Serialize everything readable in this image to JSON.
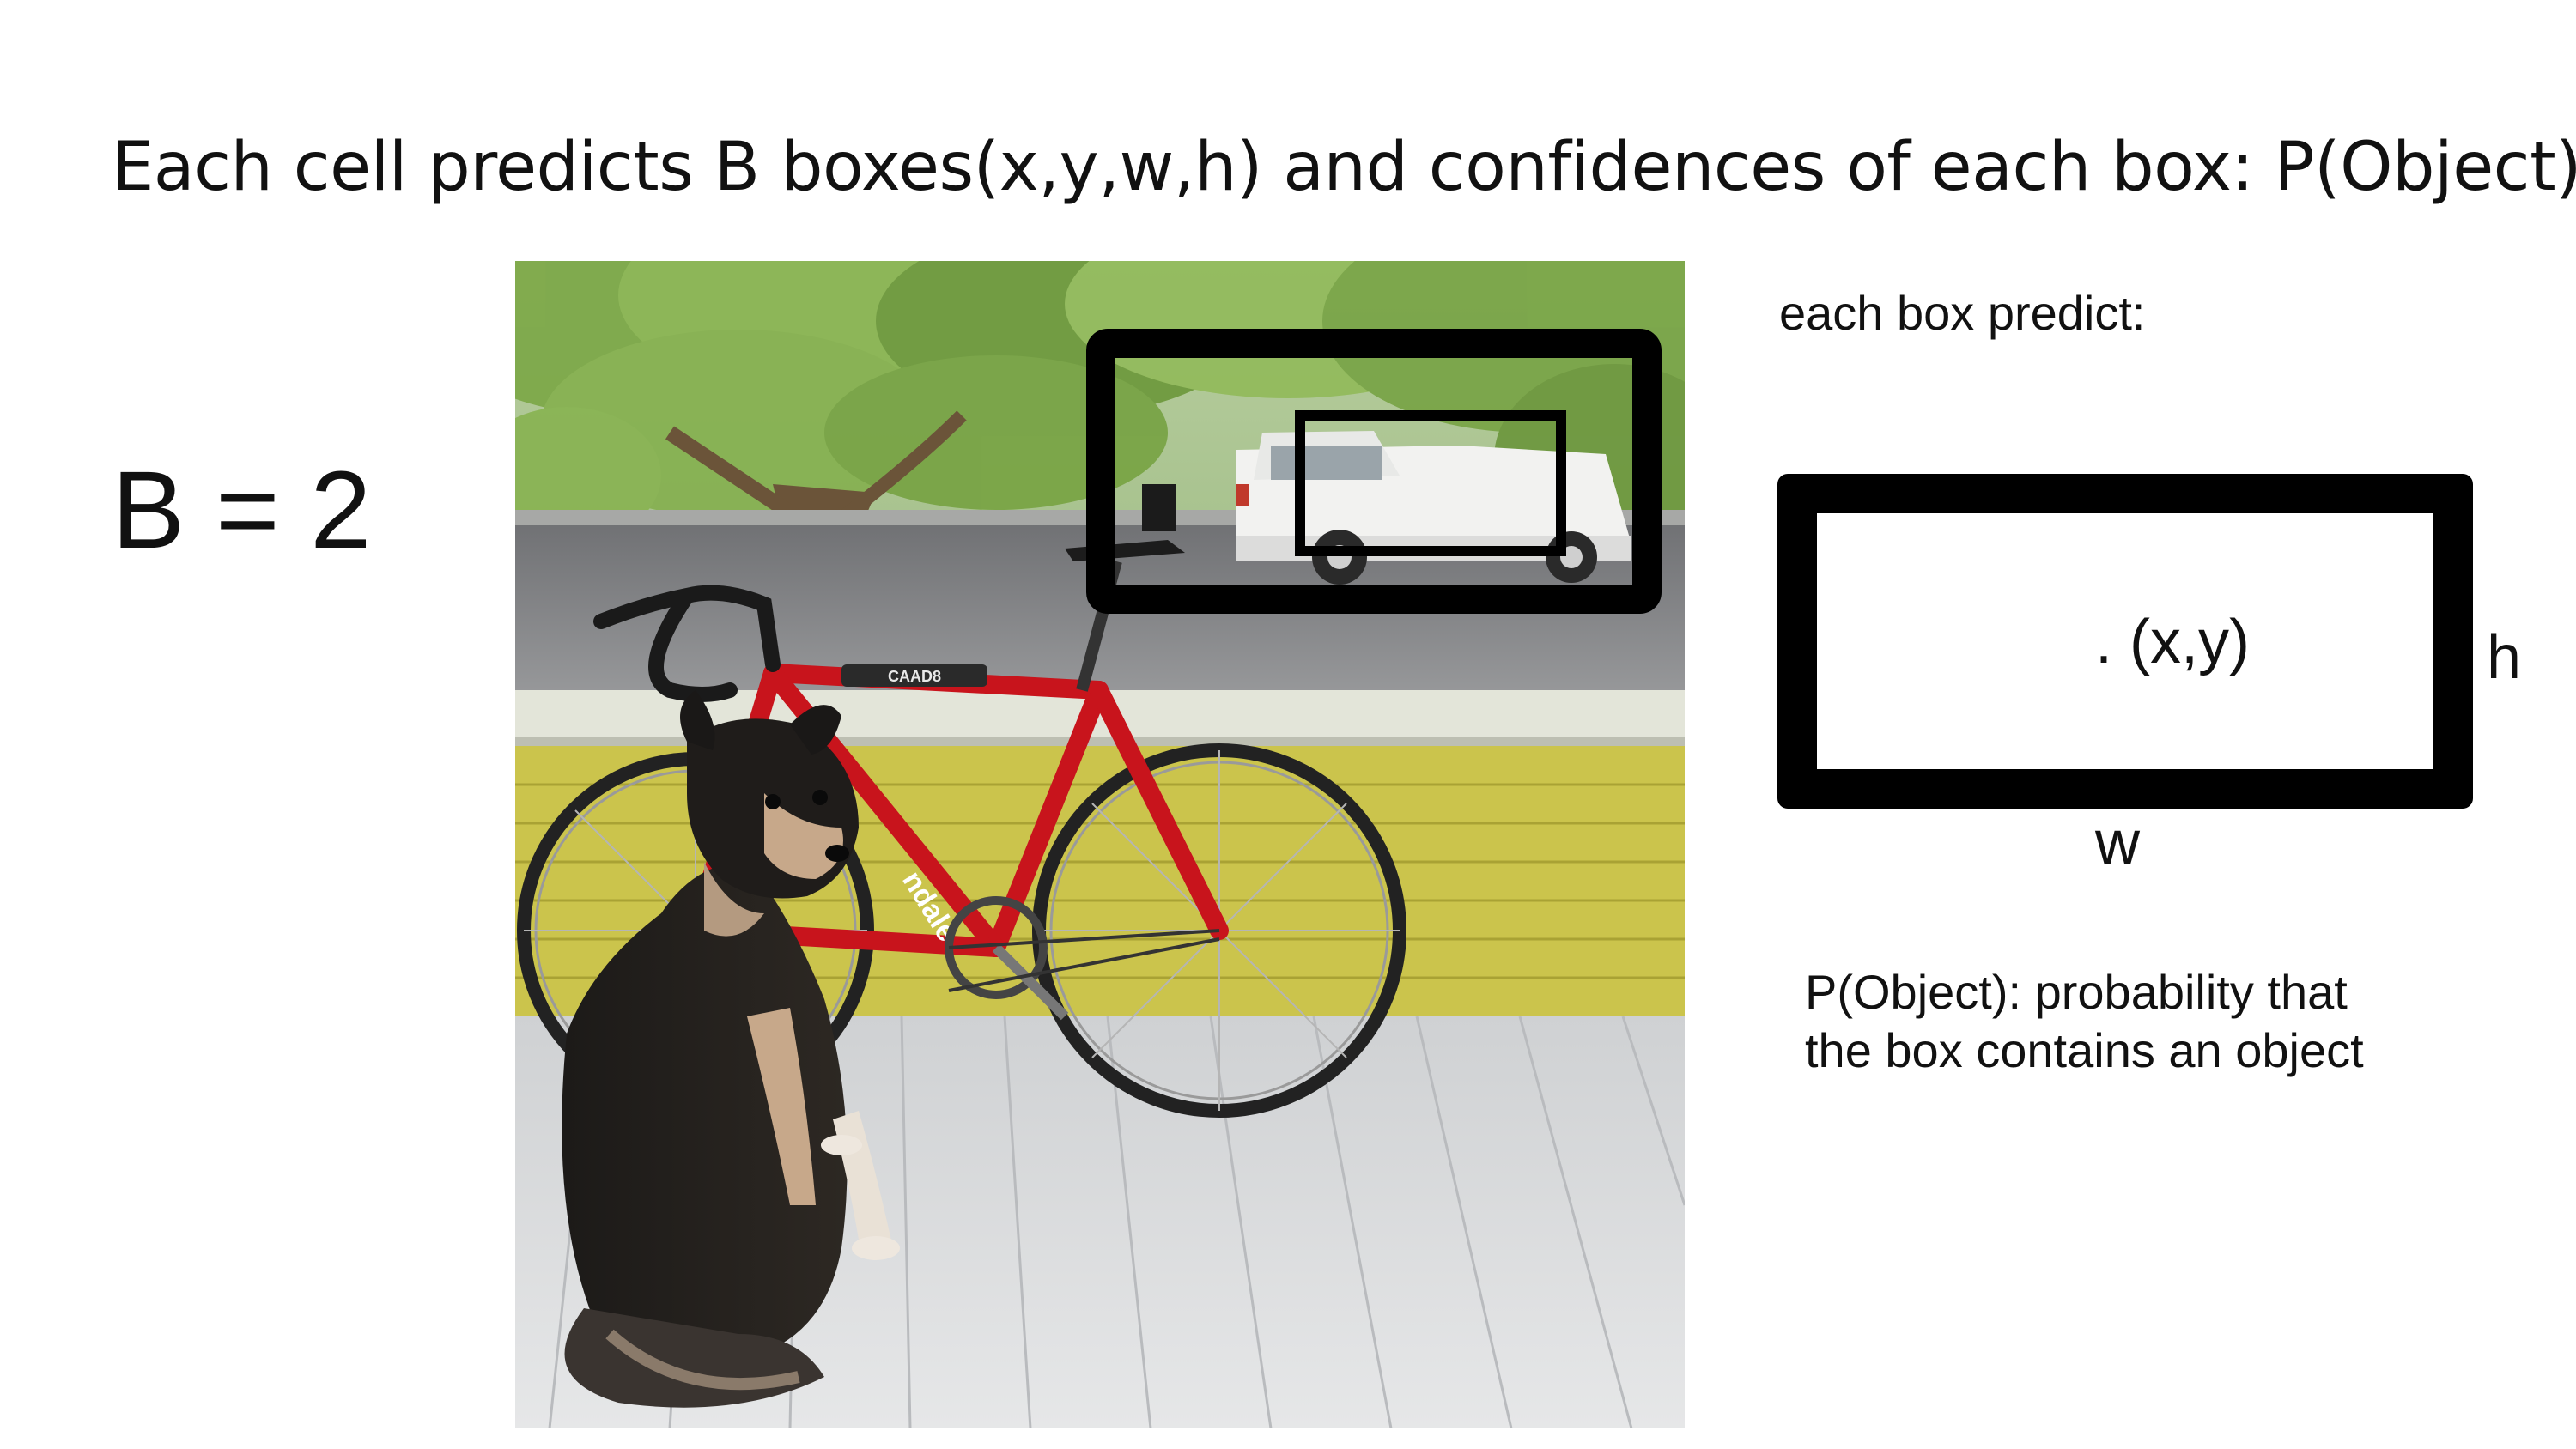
{
  "slide": {
    "title": "Each cell predicts B boxes(x,y,w,h) and confidences of each box: P(Object)",
    "b_value_label": "B = 2"
  },
  "photo": {
    "subject": "dog sitting next to a red road bicycle on a porch, white pickup truck in background",
    "bike_brand_text": "CAAD8",
    "bike_model_text": "ndale",
    "colors": {
      "bike_frame": "#c8141c",
      "siding": "#c9c24a",
      "porch": "#d9dadb",
      "foliage": "#7faa4c",
      "box_stroke": "#000000"
    }
  },
  "box_explanation": {
    "heading": "each box predict:",
    "center_label": ". (x,y)",
    "height_label": "h",
    "width_label": "w",
    "definition_line1": "P(Object): probability that",
    "definition_line2": "the box contains an object"
  }
}
